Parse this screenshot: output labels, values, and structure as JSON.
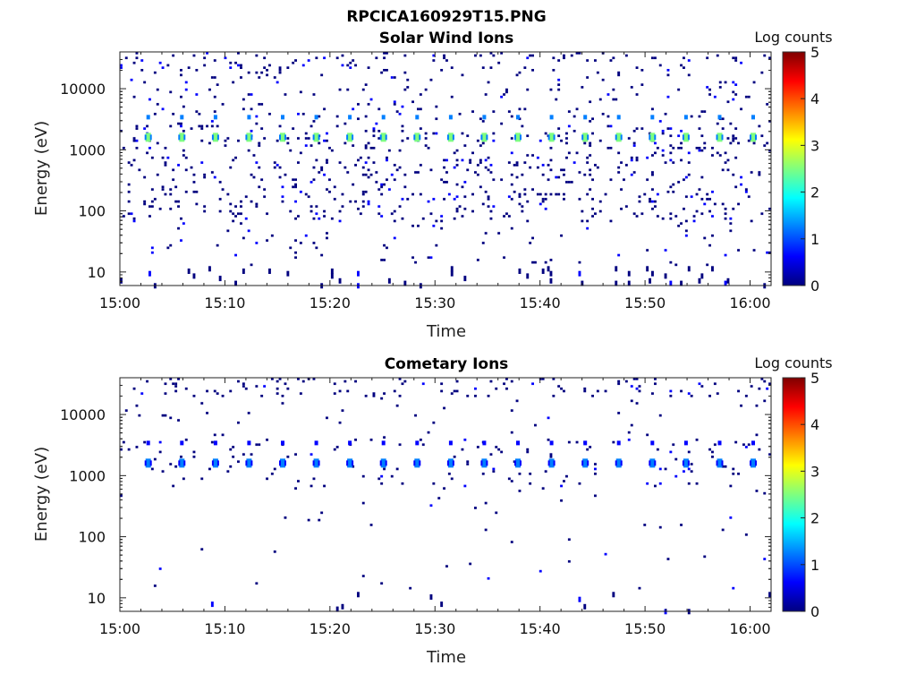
{
  "figure": {
    "title": "RPCICA160929T15.PNG"
  },
  "chart_data": [
    {
      "type": "heatmap",
      "title": "Solar Wind Ions",
      "xlabel": "Time",
      "ylabel": "Energy (eV)",
      "x_range": [
        "15:00",
        "16:02"
      ],
      "y_scale": "log",
      "ylim": [
        6,
        40000
      ],
      "x_ticks": [
        "15:00",
        "15:10",
        "15:20",
        "15:30",
        "15:40",
        "15:50",
        "16:00"
      ],
      "y_ticks": [
        10,
        100,
        1000,
        10000
      ],
      "y_tick_labels": [
        "10",
        "100",
        "1000",
        "10000"
      ],
      "colorbar": {
        "label": "Log counts",
        "min": 0,
        "max": 5,
        "ticks": [
          "0",
          "1",
          "2",
          "3",
          "4",
          "5"
        ]
      },
      "colormap": [
        "#00007f",
        "#0000ff",
        "#007fff",
        "#00ffff",
        "#7fff7f",
        "#ffff00",
        "#ff7f00",
        "#ff0000",
        "#7f0000"
      ],
      "sweep_period_min": 3.2,
      "peak_times_min": [
        2.7,
        5.9,
        9.1,
        12.3,
        15.5,
        18.7,
        21.9,
        25.1,
        28.3,
        31.5,
        34.7,
        37.9,
        41.1,
        44.3,
        47.5,
        50.7,
        53.9,
        57.1,
        60.3
      ],
      "peak_energy_eV": 1600,
      "peak_log_counts": 2.2,
      "background_log_counts": 0.3
    },
    {
      "type": "heatmap",
      "title": "Cometary Ions",
      "xlabel": "Time",
      "ylabel": "Energy (eV)",
      "x_range": [
        "15:00",
        "16:02"
      ],
      "y_scale": "log",
      "ylim": [
        6,
        40000
      ],
      "x_ticks": [
        "15:00",
        "15:10",
        "15:20",
        "15:30",
        "15:40",
        "15:50",
        "16:00"
      ],
      "y_ticks": [
        10,
        100,
        1000,
        10000
      ],
      "y_tick_labels": [
        "10",
        "100",
        "1000",
        "10000"
      ],
      "colorbar": {
        "label": "Log counts",
        "min": 0,
        "max": 5,
        "ticks": [
          "0",
          "1",
          "2",
          "3",
          "4",
          "5"
        ]
      },
      "colormap": [
        "#00007f",
        "#0000ff",
        "#007fff",
        "#00ffff",
        "#7fff7f",
        "#ffff00",
        "#ff7f00",
        "#ff0000",
        "#7f0000"
      ],
      "sweep_period_min": 3.2,
      "peak_times_min": [
        2.7,
        5.9,
        9.1,
        12.3,
        15.5,
        18.7,
        21.9,
        25.1,
        28.3,
        31.5,
        34.7,
        37.9,
        41.1,
        44.3,
        47.5,
        50.7,
        53.9,
        57.1,
        60.3
      ],
      "peak_energy_eV": 1600,
      "peak_log_counts": 1.2,
      "background_log_counts": 0.3
    }
  ]
}
